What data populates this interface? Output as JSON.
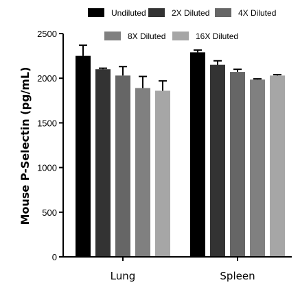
{
  "chart_data": {
    "type": "bar",
    "categories": [
      "Lung",
      "Spleen"
    ],
    "ylabel": "Mouse P-Selectin (pg/mL)",
    "ylim": [
      0,
      2500
    ],
    "yticks": [
      0,
      500,
      1000,
      1500,
      2000,
      2500
    ],
    "error_bars": true,
    "legend_position": "top",
    "series": [
      {
        "name": "Undiluted",
        "color": "#000000",
        "values": [
          2250,
          2290
        ],
        "errors": [
          120,
          25
        ]
      },
      {
        "name": "2X Diluted",
        "color": "#333333",
        "values": [
          2100,
          2150
        ],
        "errors": [
          12,
          45
        ]
      },
      {
        "name": "4X Diluted",
        "color": "#666666",
        "values": [
          2030,
          2070
        ],
        "errors": [
          100,
          30
        ]
      },
      {
        "name": "8X Diluted",
        "color": "#808080",
        "values": [
          1890,
          1985
        ],
        "errors": [
          130,
          8
        ]
      },
      {
        "name": "16X Diluted",
        "color": "#a6a6a6",
        "values": [
          1860,
          2030
        ],
        "errors": [
          110,
          10
        ]
      }
    ]
  }
}
